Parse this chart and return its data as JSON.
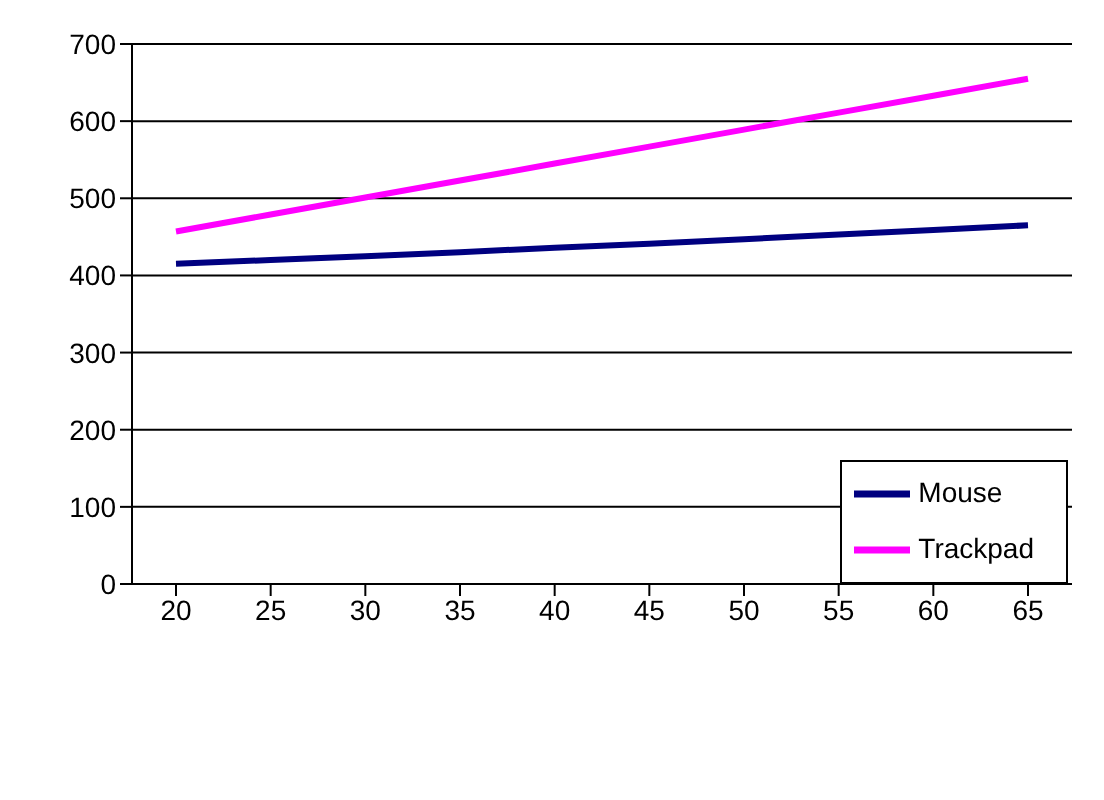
{
  "chart_data": {
    "type": "line",
    "categories": [
      "20",
      "25",
      "30",
      "35",
      "40",
      "45",
      "50",
      "55",
      "60",
      "65"
    ],
    "series": [
      {
        "name": "Mouse",
        "color": "#000080",
        "values": [
          415,
          420,
          425,
          430,
          436,
          441,
          447,
          453,
          459,
          465
        ]
      },
      {
        "name": "Trackpad",
        "color": "#ff00ff",
        "values": [
          457,
          479,
          501,
          523,
          545,
          567,
          589,
          611,
          633,
          655
        ]
      }
    ],
    "ylim": [
      0,
      700
    ],
    "yticks": [
      0,
      100,
      200,
      300,
      400,
      500,
      600,
      700
    ],
    "grid": "y",
    "legend": "bottom right",
    "marker": "none",
    "line_style": "solid"
  }
}
